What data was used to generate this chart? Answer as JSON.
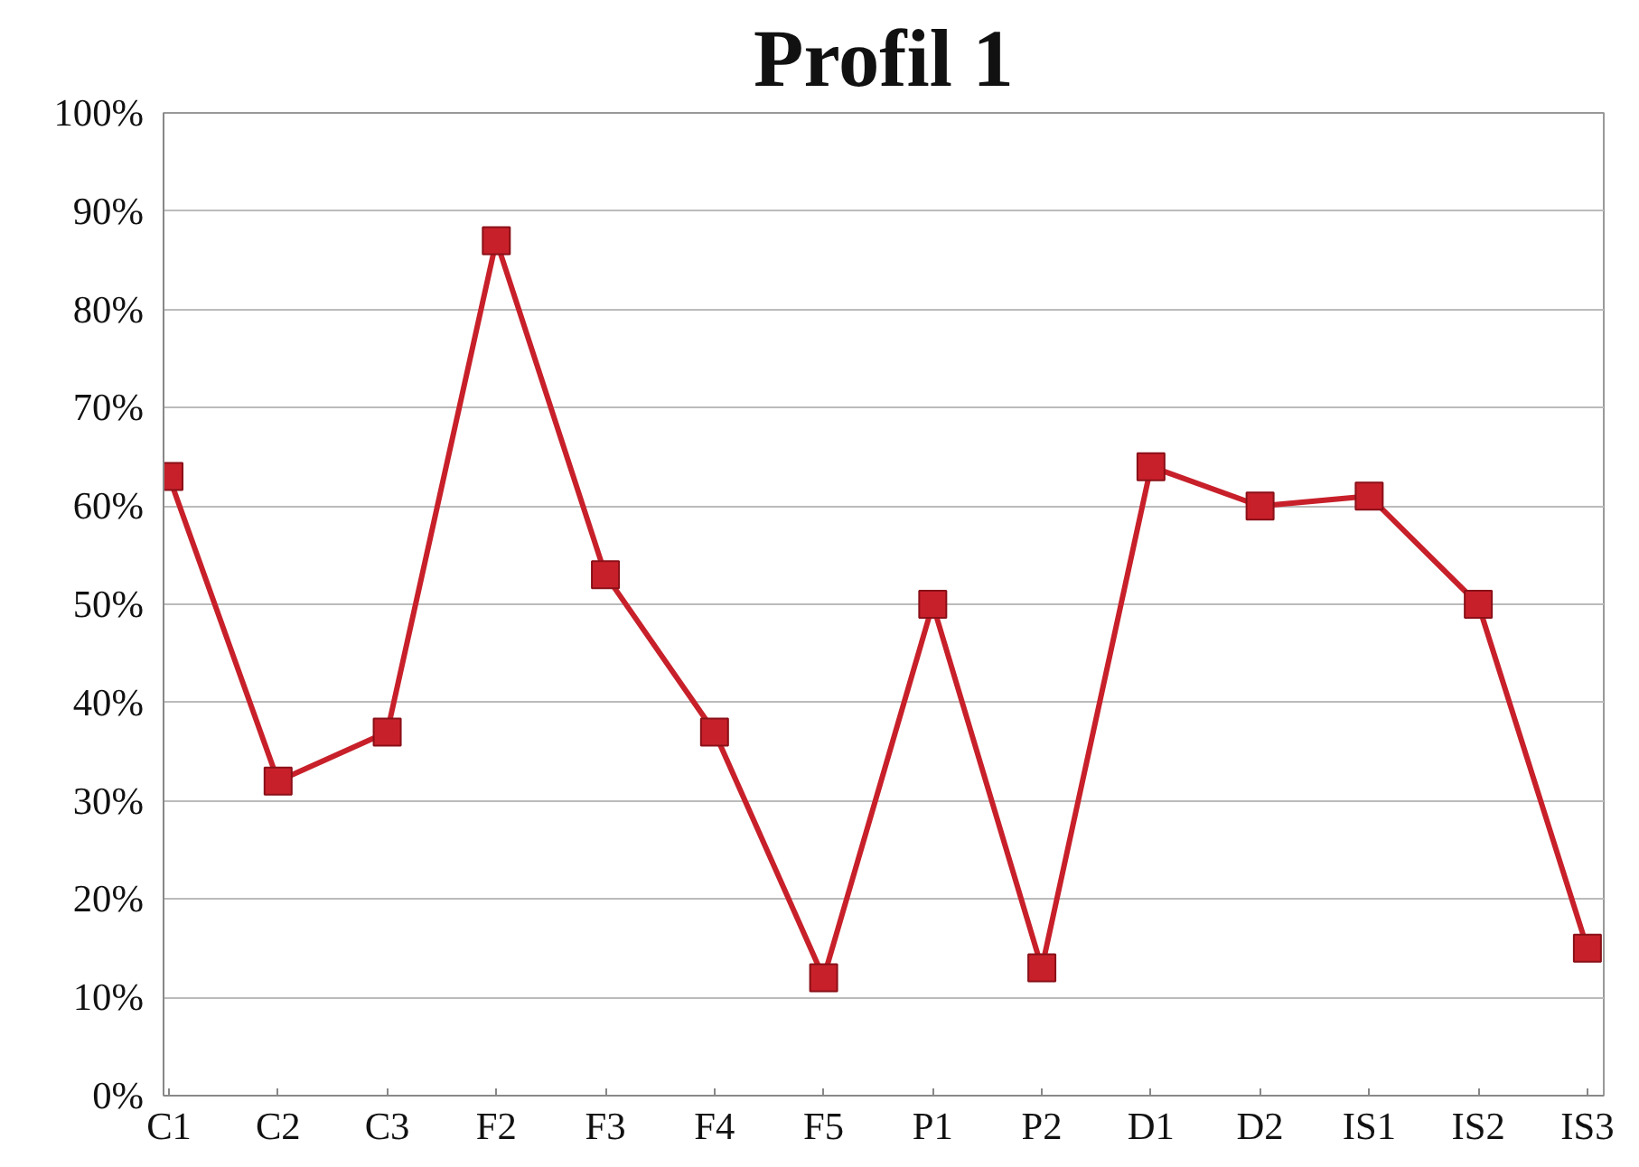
{
  "chart_data": {
    "type": "line",
    "title": "Profil 1",
    "categories": [
      "C1",
      "C2",
      "C3",
      "F2",
      "F3",
      "F4",
      "F5",
      "P1",
      "P2",
      "D1",
      "D2",
      "IS1",
      "IS2",
      "IS3"
    ],
    "series": [
      {
        "color": "#c8202a",
        "values": [
          63,
          32,
          37,
          87,
          53,
          37,
          12,
          50,
          13,
          64,
          60,
          61,
          50,
          15
        ]
      }
    ],
    "ylim": [
      0,
      100
    ],
    "yticks": [
      {
        "value": 0,
        "label": "0%"
      },
      {
        "value": 10,
        "label": "10%"
      },
      {
        "value": 20,
        "label": "20%"
      },
      {
        "value": 30,
        "label": "30%"
      },
      {
        "value": 40,
        "label": "40%"
      },
      {
        "value": 50,
        "label": "50%"
      },
      {
        "value": 60,
        "label": "60%"
      },
      {
        "value": 70,
        "label": "70%"
      },
      {
        "value": 80,
        "label": "80%"
      },
      {
        "value": 90,
        "label": "90%"
      },
      {
        "value": 100,
        "label": "100%"
      }
    ],
    "grid": "y",
    "marker": "square",
    "line_style": "solid"
  }
}
